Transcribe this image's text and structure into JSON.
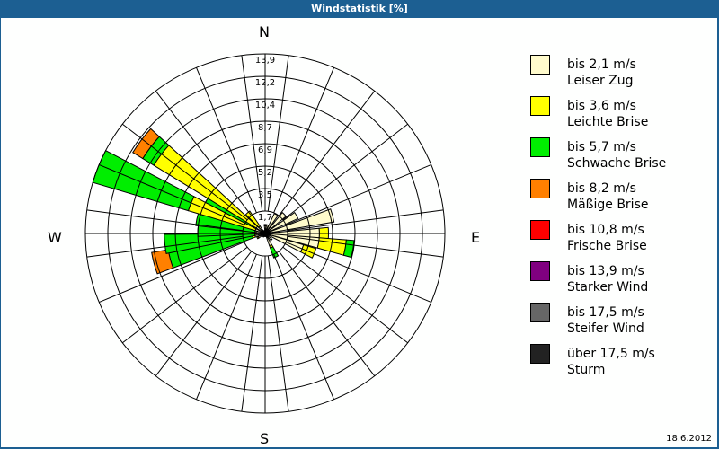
{
  "window": {
    "title": "Windstatistik [%]"
  },
  "footer": {
    "date": "18.6.2012"
  },
  "compass": {
    "n": "N",
    "e": "E",
    "s": "S",
    "w": "W"
  },
  "legend": [
    {
      "range": "bis 2,1 m/s",
      "name": "Leiser Zug",
      "color": "#fffbcc"
    },
    {
      "range": "bis 3,6 m/s",
      "name": "Leichte Brise",
      "color": "#ffff00"
    },
    {
      "range": "bis 5,7 m/s",
      "name": "Schwache Brise",
      "color": "#00ee00"
    },
    {
      "range": "bis 8,2 m/s",
      "name": "Mäßige Brise",
      "color": "#ff8000"
    },
    {
      "range": "bis 10,8 m/s",
      "name": "Frische Brise",
      "color": "#ff0000"
    },
    {
      "range": "bis 13,9 m/s",
      "name": "Starker Wind",
      "color": "#800080"
    },
    {
      "range": "bis 17,5 m/s",
      "name": "Steifer Wind",
      "color": "#666666"
    },
    {
      "range": "über 17,5 m/s",
      "name": "Sturm",
      "color": "#222222"
    }
  ],
  "chart_data": {
    "type": "windrose",
    "title": "Windstatistik [%]",
    "ring_labels": [
      "1,7",
      "3,5",
      "5,2",
      "6,9",
      "8,7",
      "10,4",
      "12,2",
      "13,9"
    ],
    "rmax": 13.9,
    "series_names": [
      "Leiser Zug",
      "Leichte Brise",
      "Schwache Brise",
      "Mäßige Brise"
    ],
    "sectors": [
      {
        "dir": 0,
        "values": [
          0.6,
          0.1,
          0,
          0
        ]
      },
      {
        "dir": 15,
        "values": [
          0.7,
          0,
          0,
          0
        ]
      },
      {
        "dir": 30,
        "values": [
          1.7,
          0,
          0,
          0
        ]
      },
      {
        "dir": 45,
        "values": [
          2.1,
          0,
          0,
          0
        ]
      },
      {
        "dir": 60,
        "values": [
          2.8,
          0,
          0,
          0
        ]
      },
      {
        "dir": 75,
        "values": [
          5.4,
          0,
          0,
          0
        ]
      },
      {
        "dir": 90,
        "values": [
          4.2,
          0.7,
          0,
          0
        ]
      },
      {
        "dir": 100,
        "values": [
          4.2,
          2.1,
          0.6,
          0
        ]
      },
      {
        "dir": 112,
        "values": [
          3.1,
          1.0,
          0,
          0
        ]
      },
      {
        "dir": 135,
        "values": [
          0.7,
          0,
          0,
          0
        ]
      },
      {
        "dir": 155,
        "values": [
          1.0,
          0.2,
          0.8,
          0
        ]
      },
      {
        "dir": 210,
        "values": [
          0.3,
          0,
          0,
          0
        ]
      },
      {
        "dir": 240,
        "values": [
          0.6,
          0.1,
          0,
          0
        ]
      },
      {
        "dir": 255,
        "values": [
          0.8,
          0.2,
          6.6,
          1.3
        ]
      },
      {
        "dir": 264,
        "values": [
          0.7,
          0.1,
          7.0,
          0
        ]
      },
      {
        "dir": 273,
        "values": [
          0.7,
          0.1,
          4.4,
          0
        ]
      },
      {
        "dir": 282,
        "values": [
          0.7,
          0.1,
          4.6,
          0
        ]
      },
      {
        "dir": 292,
        "values": [
          0.8,
          5.4,
          7.7,
          0
        ]
      },
      {
        "dir": 303,
        "values": [
          0.7,
          0.3,
          4.2,
          0
        ]
      },
      {
        "dir": 307,
        "values": [
          0.8,
          9.3,
          1.0,
          0.9
        ]
      },
      {
        "dir": 320,
        "values": [
          0.7,
          1.4,
          0,
          0
        ]
      }
    ],
    "colors": [
      "#fffbcc",
      "#ffff00",
      "#00ee00",
      "#ff8000"
    ]
  }
}
